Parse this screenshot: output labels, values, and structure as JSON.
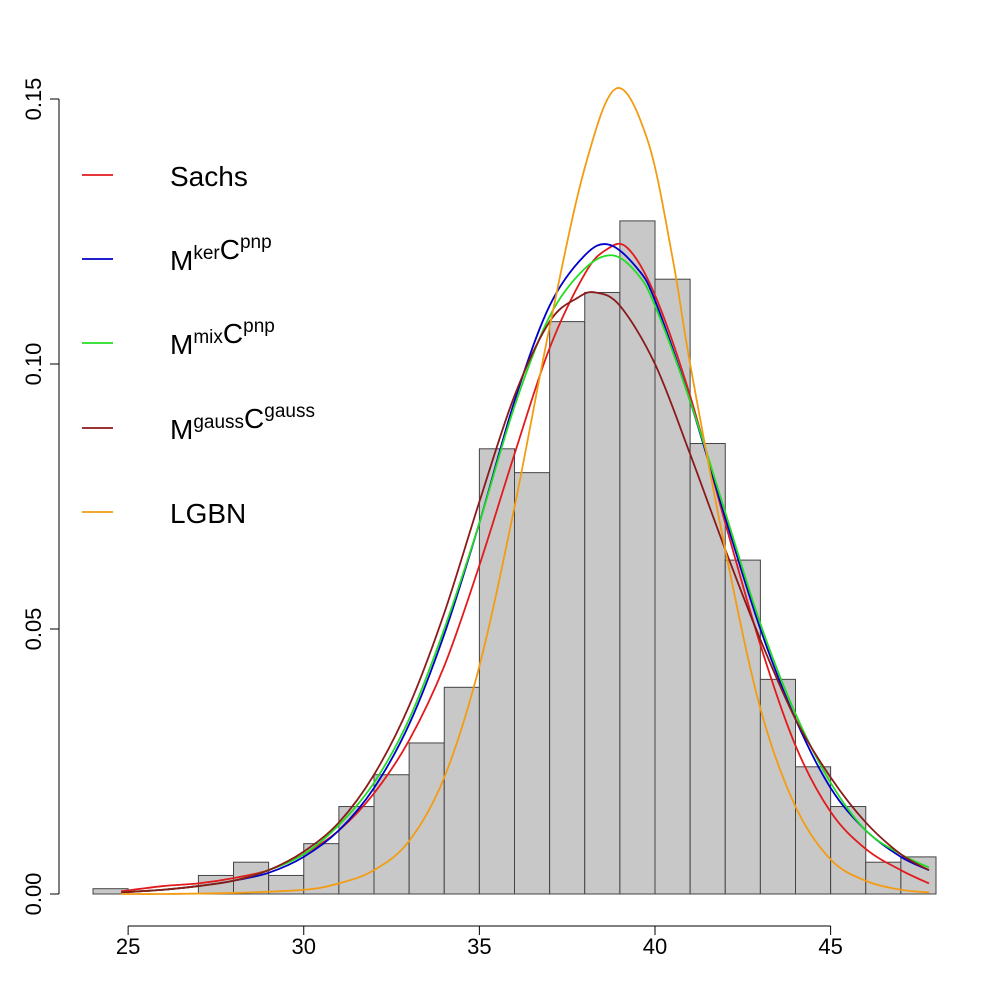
{
  "chart_data": {
    "type": "bar",
    "title": "",
    "xlabel": "",
    "ylabel": "",
    "xlim": [
      24,
      48
    ],
    "ylim": [
      0,
      0.15
    ],
    "x_ticks": [
      "25",
      "30",
      "35",
      "40",
      "45"
    ],
    "y_ticks": [
      "0.00",
      "0.05",
      "0.10",
      "0.15"
    ],
    "grid": false,
    "legend_position": "top-left",
    "histogram": {
      "bin_width": 1,
      "bins": [
        {
          "start": 24,
          "value": 0.001
        },
        {
          "start": 25,
          "value": 0.0
        },
        {
          "start": 26,
          "value": 0.0
        },
        {
          "start": 27,
          "value": 0.0035
        },
        {
          "start": 28,
          "value": 0.006
        },
        {
          "start": 29,
          "value": 0.0035
        },
        {
          "start": 30,
          "value": 0.0095
        },
        {
          "start": 31,
          "value": 0.0165
        },
        {
          "start": 32,
          "value": 0.0225
        },
        {
          "start": 33,
          "value": 0.0285
        },
        {
          "start": 34,
          "value": 0.039
        },
        {
          "start": 35,
          "value": 0.084
        },
        {
          "start": 36,
          "value": 0.0795
        },
        {
          "start": 37,
          "value": 0.108
        },
        {
          "start": 38,
          "value": 0.1135
        },
        {
          "start": 39,
          "value": 0.127
        },
        {
          "start": 40,
          "value": 0.116
        },
        {
          "start": 41,
          "value": 0.085
        },
        {
          "start": 42,
          "value": 0.063
        },
        {
          "start": 43,
          "value": 0.0405
        },
        {
          "start": 44,
          "value": 0.024
        },
        {
          "start": 45,
          "value": 0.0165
        },
        {
          "start": 46,
          "value": 0.006
        },
        {
          "start": 47,
          "value": 0.007
        }
      ],
      "fill": "#c8c8c8",
      "stroke": "#444444"
    },
    "series": [
      {
        "name": "Sachs",
        "name_parts": {
          "base1": "Sachs",
          "sup1": "",
          "base2": "",
          "sup2": ""
        },
        "color": "#e31a1c",
        "x": [
          24.8,
          26,
          27,
          28,
          29,
          30,
          31,
          32,
          33,
          34,
          35,
          36,
          37,
          38,
          38.6,
          39.2,
          40,
          41,
          42,
          43,
          44,
          45,
          46,
          47,
          47.8
        ],
        "y": [
          0.0005,
          0.0015,
          0.002,
          0.003,
          0.0045,
          0.0075,
          0.012,
          0.019,
          0.029,
          0.043,
          0.062,
          0.083,
          0.103,
          0.117,
          0.1215,
          0.122,
          0.113,
          0.094,
          0.07,
          0.047,
          0.028,
          0.0155,
          0.0085,
          0.0045,
          0.002
        ]
      },
      {
        "name": "MkerCpnp",
        "name_parts": {
          "base1": "M",
          "sup1": "ker",
          "base2": "C",
          "sup2": "pnp"
        },
        "color": "#0000cc",
        "x": [
          24.8,
          26,
          27,
          28,
          29,
          30,
          31,
          32,
          33,
          34,
          35,
          36,
          37,
          38,
          38.7,
          39.5,
          40,
          41,
          42,
          43,
          44,
          45,
          46,
          47,
          47.8
        ],
        "y": [
          0.0003,
          0.0008,
          0.0015,
          0.0025,
          0.004,
          0.007,
          0.012,
          0.02,
          0.032,
          0.049,
          0.07,
          0.093,
          0.111,
          0.1205,
          0.1225,
          0.118,
          0.112,
          0.093,
          0.071,
          0.05,
          0.033,
          0.02,
          0.012,
          0.007,
          0.0045
        ]
      },
      {
        "name": "MmixCpnp",
        "name_parts": {
          "base1": "M",
          "sup1": "mix",
          "base2": "C",
          "sup2": "pnp"
        },
        "color": "#22dd22",
        "x": [
          24.8,
          26,
          27,
          28,
          29,
          30,
          31,
          32,
          33,
          34,
          35,
          36,
          37,
          38,
          38.8,
          39.5,
          40,
          41,
          42,
          43,
          44,
          45,
          46,
          47,
          47.8
        ],
        "y": [
          0.0003,
          0.0008,
          0.0015,
          0.0025,
          0.0045,
          0.0075,
          0.013,
          0.021,
          0.033,
          0.05,
          0.07,
          0.092,
          0.109,
          0.118,
          0.1205,
          0.117,
          0.111,
          0.093,
          0.072,
          0.051,
          0.034,
          0.021,
          0.012,
          0.0075,
          0.005
        ]
      },
      {
        "name": "MgaussCgauss",
        "name_parts": {
          "base1": "M",
          "sup1": "gauss",
          "base2": "C",
          "sup2": "gauss"
        },
        "color": "#8b1a1a",
        "x": [
          24.8,
          26,
          27,
          28,
          29,
          30,
          31,
          32,
          33,
          34,
          35,
          36,
          37,
          37.8,
          38.3,
          39,
          40,
          41,
          42,
          43,
          44,
          45,
          46,
          47,
          47.8
        ],
        "y": [
          0.0003,
          0.0008,
          0.0015,
          0.0025,
          0.0045,
          0.008,
          0.0135,
          0.0225,
          0.0355,
          0.053,
          0.074,
          0.094,
          0.108,
          0.1125,
          0.1135,
          0.111,
          0.1,
          0.083,
          0.065,
          0.048,
          0.033,
          0.022,
          0.0135,
          0.0075,
          0.0045
        ]
      },
      {
        "name": "LGBN",
        "name_parts": {
          "base1": "LGBN",
          "sup1": "",
          "base2": "",
          "sup2": ""
        },
        "color": "#f39c12",
        "x": [
          24.8,
          26,
          28,
          30,
          31,
          32,
          33,
          34,
          35,
          36,
          37,
          38,
          38.9,
          39.8,
          40.5,
          41,
          42,
          43,
          44,
          45,
          46,
          47,
          47.8
        ],
        "y": [
          0.0,
          0.0,
          0.0002,
          0.0008,
          0.002,
          0.0045,
          0.01,
          0.022,
          0.043,
          0.073,
          0.107,
          0.137,
          0.152,
          0.142,
          0.12,
          0.1,
          0.065,
          0.035,
          0.0165,
          0.0065,
          0.0025,
          0.0008,
          0.0003
        ]
      }
    ]
  }
}
